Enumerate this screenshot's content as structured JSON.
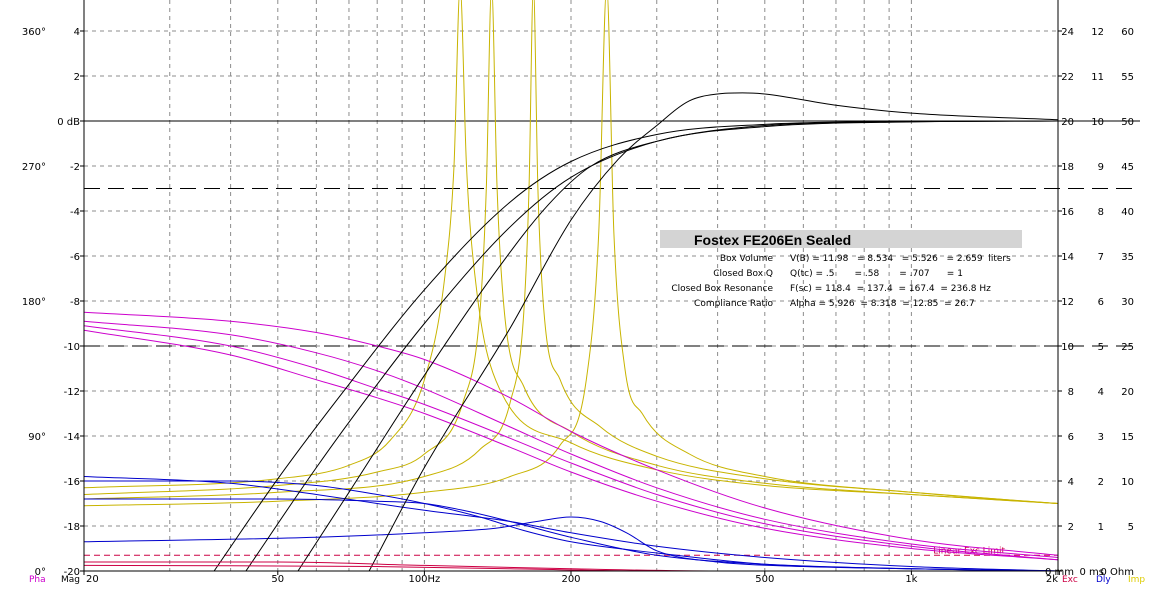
{
  "chart_data": {
    "type": "line",
    "x_scale": "log",
    "xlim": [
      20,
      2000
    ],
    "x_ticks": [
      {
        "value": 20,
        "label": "20"
      },
      {
        "value": 50,
        "label": "50"
      },
      {
        "value": 100,
        "label": "100Hz"
      },
      {
        "value": 200,
        "label": "200"
      },
      {
        "value": 500,
        "label": "500"
      },
      {
        "value": 1000,
        "label": "1k"
      },
      {
        "value": 2000,
        "label": "2k"
      }
    ],
    "x_minor_ticks": [
      30,
      40,
      60,
      70,
      80,
      90,
      300,
      400,
      600,
      700,
      800,
      900
    ],
    "ylim": [
      -20,
      6
    ],
    "mag_ticks": [
      {
        "value": 4,
        "label": "4"
      },
      {
        "value": 2,
        "label": "2"
      },
      {
        "value": 0,
        "label": "0 dB"
      },
      {
        "value": -2,
        "label": "-2"
      },
      {
        "value": -4,
        "label": "-4"
      },
      {
        "value": -6,
        "label": "-6"
      },
      {
        "value": -8,
        "label": "-8"
      },
      {
        "value": -10,
        "label": "-10"
      },
      {
        "value": -12,
        "label": "-12"
      },
      {
        "value": -14,
        "label": "-14"
      },
      {
        "value": -16,
        "label": "-16"
      },
      {
        "value": -18,
        "label": "-18"
      },
      {
        "value": -20,
        "label": "-20"
      }
    ],
    "phase_ticks": [
      {
        "value": 4,
        "label": "360°"
      },
      {
        "value": -2,
        "label": "270°"
      },
      {
        "value": -8,
        "label": "180°"
      },
      {
        "value": -14,
        "label": "90°"
      },
      {
        "value": -20,
        "label": "0°"
      }
    ],
    "right_tick_rows": [
      {
        "value": 4,
        "labels": [
          "24",
          "12",
          "60"
        ]
      },
      {
        "value": 2,
        "labels": [
          "22",
          "11",
          "55"
        ]
      },
      {
        "value": 0,
        "labels": [
          "20",
          "10",
          "50"
        ]
      },
      {
        "value": -2,
        "labels": [
          "18",
          "9",
          "45"
        ]
      },
      {
        "value": -4,
        "labels": [
          "16",
          "8",
          "40"
        ]
      },
      {
        "value": -6,
        "labels": [
          "14",
          "7",
          "35"
        ]
      },
      {
        "value": -8,
        "labels": [
          "12",
          "6",
          "30"
        ]
      },
      {
        "value": -10,
        "labels": [
          "10",
          "5",
          "25"
        ]
      },
      {
        "value": -12,
        "labels": [
          "8",
          "4",
          "20"
        ]
      },
      {
        "value": -14,
        "labels": [
          "6",
          "3",
          "15"
        ]
      },
      {
        "value": -16,
        "labels": [
          "4",
          "2",
          "10"
        ]
      },
      {
        "value": -18,
        "labels": [
          "2",
          "1",
          "5"
        ]
      },
      {
        "value": -20,
        "labels": [
          "0 mm",
          "0 ms",
          "0 Ohm"
        ]
      }
    ],
    "left_axis_keys": [
      {
        "label": "Pha",
        "color": "#cc00cc"
      },
      {
        "label": "Mag",
        "color": "#000000"
      }
    ],
    "right_axis_keys": [
      {
        "label": "Exc",
        "color": "#cc0044"
      },
      {
        "label": "Dly",
        "color": "#0000cc"
      },
      {
        "label": "Imp",
        "color": "#ddcc00"
      }
    ],
    "reference_lines": [
      {
        "y": 0,
        "style": "solid"
      },
      {
        "y": -3,
        "style": "dashed"
      },
      {
        "y": -10,
        "style": "dashed"
      }
    ],
    "excursion_limit": {
      "y": -19.3,
      "label": "Linear Exc Limit",
      "color": "#cc0044"
    },
    "colors": {
      "magnitude": "#000000",
      "phase": "#cc00cc",
      "delay": "#0000cc",
      "impedance": "#c8b400",
      "excursion": "#cc0044",
      "grid": "#8c8c8c"
    },
    "series": [
      {
        "kind": "magnitude",
        "points": [
          [
            37,
            -20
          ],
          [
            50,
            -15.9
          ],
          [
            70,
            -11.7
          ],
          [
            100,
            -7.5
          ],
          [
            150,
            -3.6
          ],
          [
            200,
            -1.8
          ],
          [
            300,
            -0.6
          ],
          [
            500,
            -0.15
          ],
          [
            1000,
            -0.02
          ],
          [
            2000,
            0
          ]
        ]
      },
      {
        "kind": "magnitude",
        "points": [
          [
            43,
            -20
          ],
          [
            60,
            -15.4
          ],
          [
            80,
            -11.7
          ],
          [
            100,
            -9
          ],
          [
            150,
            -4.7
          ],
          [
            200,
            -2.5
          ],
          [
            300,
            -0.9
          ],
          [
            500,
            -0.25
          ],
          [
            1000,
            -0.04
          ],
          [
            2000,
            0
          ]
        ]
      },
      {
        "kind": "magnitude",
        "points": [
          [
            55,
            -20
          ],
          [
            70,
            -16.5
          ],
          [
            100,
            -11.3
          ],
          [
            140,
            -6.7
          ],
          [
            180,
            -3.7
          ],
          [
            220,
            -2
          ],
          [
            300,
            -0.9
          ],
          [
            500,
            -0.2
          ],
          [
            1000,
            -0.03
          ],
          [
            2000,
            0
          ]
        ]
      },
      {
        "kind": "magnitude",
        "points": [
          [
            77,
            -20
          ],
          [
            100,
            -15.4
          ],
          [
            150,
            -9.2
          ],
          [
            200,
            -4.4
          ],
          [
            250,
            -1.7
          ],
          [
            300,
            -0.2
          ],
          [
            350,
            0.9
          ],
          [
            400,
            1.2
          ],
          [
            450,
            1.25
          ],
          [
            500,
            1.2
          ],
          [
            700,
            0.7
          ],
          [
            1000,
            0.35
          ],
          [
            2000,
            0.06
          ]
        ]
      },
      {
        "kind": "phase",
        "points": [
          [
            20,
            -8.5
          ],
          [
            40,
            -8.9
          ],
          [
            60,
            -9.4
          ],
          [
            80,
            -10
          ],
          [
            100,
            -10.6
          ],
          [
            150,
            -12.3
          ],
          [
            200,
            -13.8
          ],
          [
            300,
            -15.5
          ],
          [
            500,
            -17.2
          ],
          [
            1000,
            -18.6
          ],
          [
            2000,
            -19.3
          ]
        ]
      },
      {
        "kind": "phase",
        "points": [
          [
            20,
            -8.9
          ],
          [
            40,
            -9.5
          ],
          [
            60,
            -10.3
          ],
          [
            80,
            -11.1
          ],
          [
            100,
            -11.9
          ],
          [
            150,
            -13.6
          ],
          [
            200,
            -14.8
          ],
          [
            300,
            -16.3
          ],
          [
            500,
            -17.7
          ],
          [
            1000,
            -18.8
          ],
          [
            2000,
            -19.4
          ]
        ]
      },
      {
        "kind": "phase",
        "points": [
          [
            20,
            -9.1
          ],
          [
            40,
            -10
          ],
          [
            60,
            -11
          ],
          [
            80,
            -11.9
          ],
          [
            100,
            -12.6
          ],
          [
            150,
            -14.1
          ],
          [
            200,
            -15.2
          ],
          [
            300,
            -16.6
          ],
          [
            500,
            -17.9
          ],
          [
            1000,
            -18.9
          ],
          [
            2000,
            -19.5
          ]
        ]
      },
      {
        "kind": "phase",
        "points": [
          [
            20,
            -9.3
          ],
          [
            40,
            -10.4
          ],
          [
            60,
            -11.5
          ],
          [
            80,
            -12.3
          ],
          [
            100,
            -13
          ],
          [
            150,
            -14.5
          ],
          [
            200,
            -15.6
          ],
          [
            300,
            -16.9
          ],
          [
            500,
            -18.1
          ],
          [
            1000,
            -19
          ],
          [
            2000,
            -19.5
          ]
        ]
      },
      {
        "kind": "delay",
        "points": [
          [
            20,
            -15.8
          ],
          [
            40,
            -16.1
          ],
          [
            60,
            -16.6
          ],
          [
            80,
            -17
          ],
          [
            100,
            -17.3
          ],
          [
            150,
            -17.8
          ],
          [
            200,
            -18.3
          ],
          [
            300,
            -18.9
          ],
          [
            500,
            -19.4
          ],
          [
            1000,
            -19.8
          ],
          [
            2000,
            -20
          ]
        ]
      },
      {
        "kind": "delay",
        "points": [
          [
            20,
            -16
          ],
          [
            40,
            -16
          ],
          [
            60,
            -16.2
          ],
          [
            80,
            -16.6
          ],
          [
            100,
            -17
          ],
          [
            130,
            -17.6
          ],
          [
            160,
            -18.2
          ],
          [
            200,
            -18.7
          ],
          [
            300,
            -19.2
          ],
          [
            500,
            -19.7
          ],
          [
            1000,
            -19.9
          ],
          [
            2000,
            -20
          ]
        ]
      },
      {
        "kind": "delay",
        "points": [
          [
            20,
            -16.8
          ],
          [
            50,
            -16.8
          ],
          [
            80,
            -16.9
          ],
          [
            100,
            -17
          ],
          [
            120,
            -17.3
          ],
          [
            150,
            -17.8
          ],
          [
            200,
            -18.5
          ],
          [
            300,
            -19.3
          ],
          [
            500,
            -19.7
          ],
          [
            1000,
            -19.9
          ],
          [
            2000,
            -20
          ]
        ]
      },
      {
        "kind": "delay",
        "points": [
          [
            20,
            -18.7
          ],
          [
            60,
            -18.5
          ],
          [
            100,
            -18.3
          ],
          [
            140,
            -18.1
          ],
          [
            170,
            -17.8
          ],
          [
            200,
            -17.6
          ],
          [
            230,
            -17.8
          ],
          [
            260,
            -18.3
          ],
          [
            300,
            -19.1
          ],
          [
            400,
            -19.6
          ],
          [
            600,
            -19.8
          ],
          [
            1000,
            -19.9
          ],
          [
            2000,
            -20
          ]
        ]
      },
      {
        "kind": "impedance",
        "points": [
          [
            20,
            -16.3
          ],
          [
            50,
            -15.9
          ],
          [
            70,
            -15.3
          ],
          [
            85,
            -14.2
          ],
          [
            100,
            -11.5
          ],
          [
            110,
            -7
          ],
          [
            115,
            -2
          ],
          [
            118.4,
            6
          ],
          [
            122,
            -2
          ],
          [
            128,
            -7.5
          ],
          [
            140,
            -11.5
          ],
          [
            200,
            -14.3
          ],
          [
            300,
            -15.5
          ],
          [
            500,
            -16.2
          ],
          [
            1000,
            -16.6
          ],
          [
            2000,
            -17
          ]
        ]
      },
      {
        "kind": "impedance",
        "points": [
          [
            20,
            -16.6
          ],
          [
            50,
            -16.2
          ],
          [
            80,
            -15.6
          ],
          [
            100,
            -14.8
          ],
          [
            120,
            -12.5
          ],
          [
            130,
            -8.5
          ],
          [
            134,
            -3
          ],
          [
            137.4,
            6
          ],
          [
            141,
            -3
          ],
          [
            146,
            -8.5
          ],
          [
            160,
            -11.8
          ],
          [
            200,
            -13.8
          ],
          [
            300,
            -15.3
          ],
          [
            500,
            -16.1
          ],
          [
            1000,
            -16.6
          ],
          [
            2000,
            -17
          ]
        ]
      },
      {
        "kind": "impedance",
        "points": [
          [
            20,
            -16.8
          ],
          [
            50,
            -16.5
          ],
          [
            100,
            -15.8
          ],
          [
            130,
            -14.6
          ],
          [
            150,
            -12.5
          ],
          [
            160,
            -8.5
          ],
          [
            164,
            -3
          ],
          [
            167.4,
            6
          ],
          [
            171,
            -3
          ],
          [
            176,
            -8.5
          ],
          [
            190,
            -11.5
          ],
          [
            230,
            -13.6
          ],
          [
            300,
            -14.9
          ],
          [
            500,
            -15.9
          ],
          [
            1000,
            -16.5
          ],
          [
            2000,
            -17
          ]
        ]
      },
      {
        "kind": "impedance",
        "points": [
          [
            20,
            -17.1
          ],
          [
            50,
            -16.9
          ],
          [
            100,
            -16.5
          ],
          [
            150,
            -15.8
          ],
          [
            190,
            -14.4
          ],
          [
            215,
            -11.5
          ],
          [
            228,
            -5
          ],
          [
            236.8,
            6
          ],
          [
            245,
            -5
          ],
          [
            258,
            -11
          ],
          [
            280,
            -13
          ],
          [
            350,
            -14.8
          ],
          [
            500,
            -15.8
          ],
          [
            1000,
            -16.5
          ],
          [
            2000,
            -17
          ]
        ]
      },
      {
        "kind": "excursion",
        "points": [
          [
            20,
            -19.6
          ],
          [
            50,
            -19.6
          ],
          [
            100,
            -19.75
          ],
          [
            200,
            -19.9
          ],
          [
            400,
            -20
          ],
          [
            2000,
            -20
          ]
        ]
      },
      {
        "kind": "excursion",
        "points": [
          [
            20,
            -19.75
          ],
          [
            80,
            -19.8
          ],
          [
            150,
            -19.9
          ],
          [
            300,
            -20
          ],
          [
            2000,
            -20
          ]
        ]
      }
    ]
  },
  "info_box": {
    "title": "Fostex FE206En Sealed",
    "rows": [
      {
        "label": "Box Volume",
        "values": "V(B) = 11.98   = 8.534   = 5.526   = 2.659  liters"
      },
      {
        "label": "Closed Box Q",
        "values": "Q(tc) = .5       = .58       = .707      = 1"
      },
      {
        "label": "Closed Box Resonance",
        "values": "F(sc) = 118.4  = 137.4  = 167.4  = 236.8 Hz"
      },
      {
        "label": "Compliance Ratio",
        "values": "Alpha = 5.926  = 8.318  = 12.85  = 26.7"
      }
    ]
  }
}
